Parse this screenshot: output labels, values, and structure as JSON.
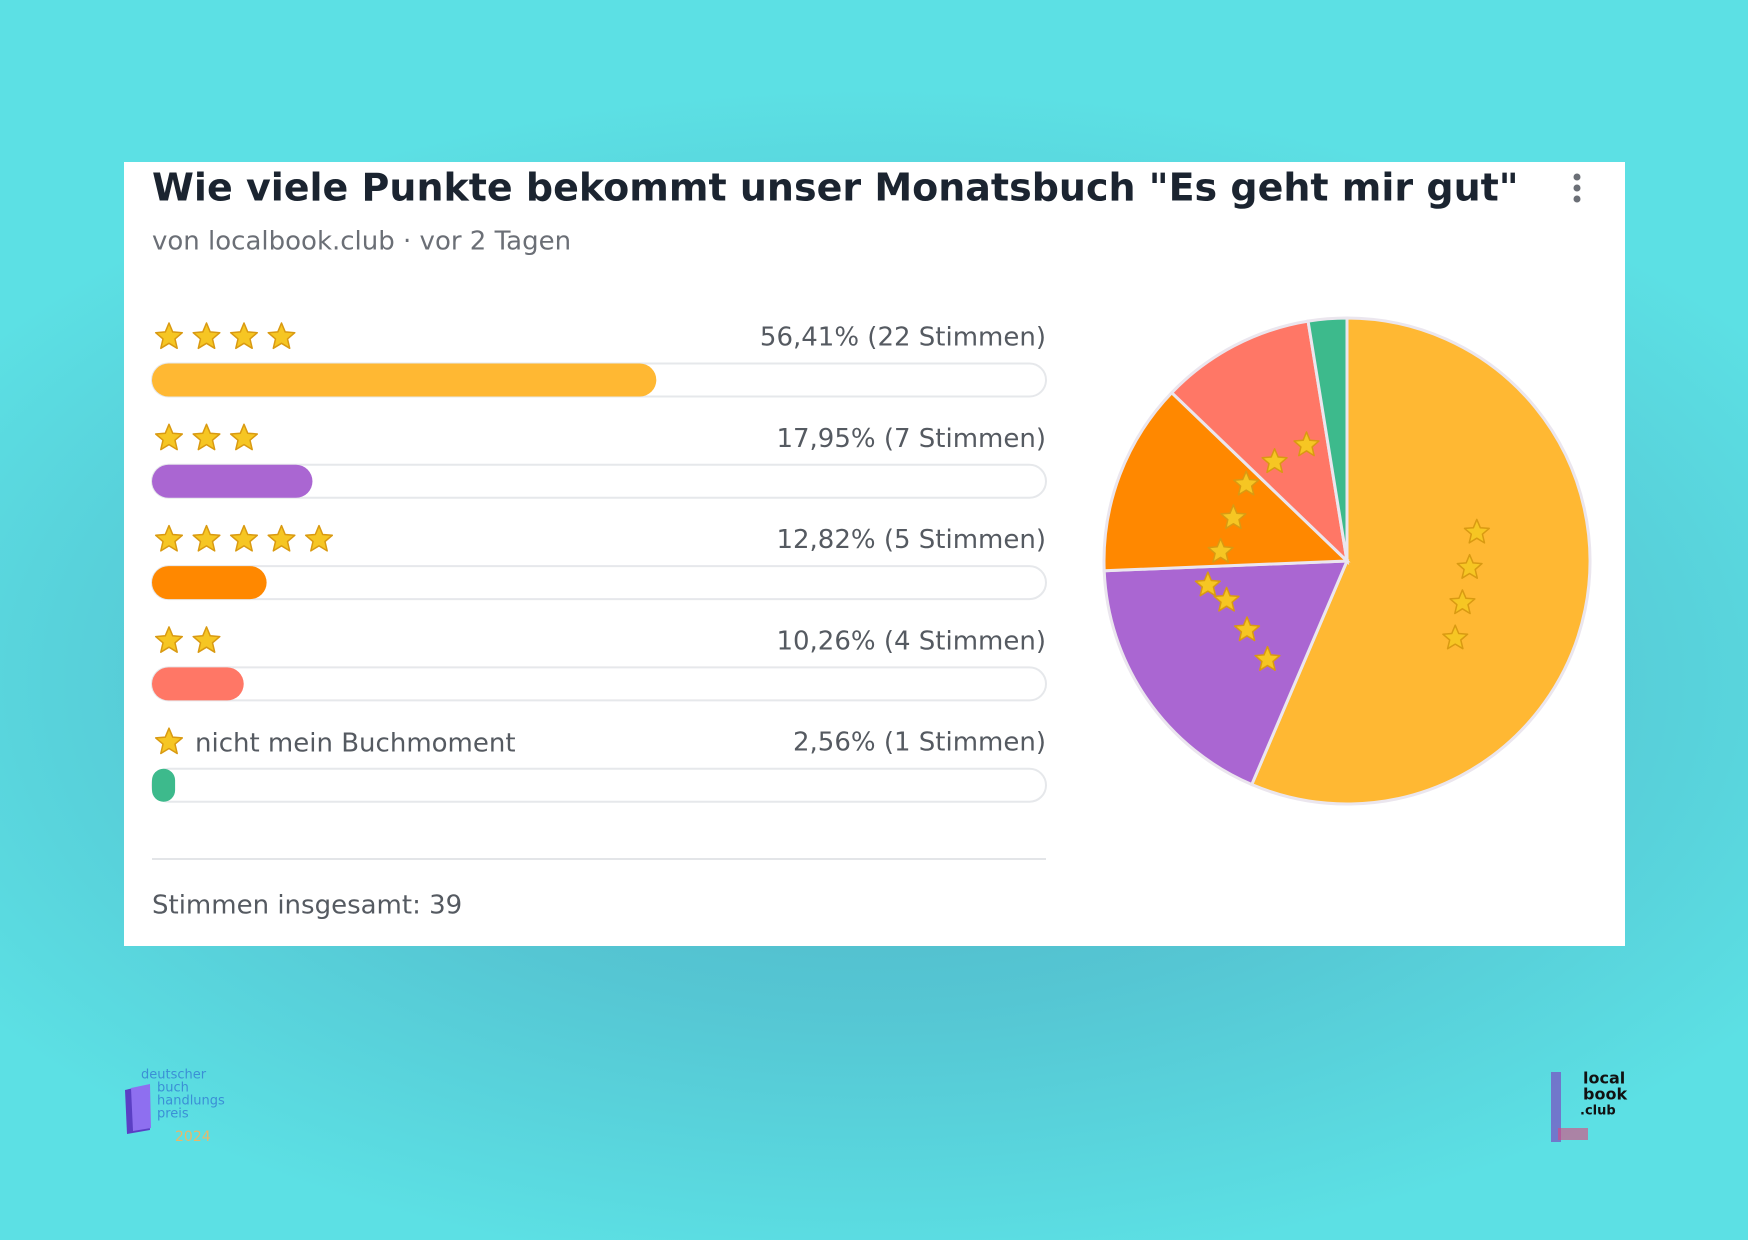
{
  "poll": {
    "title": "Wie viele Punkte bekommt unser Monatsbuch \"Es geht mir gut\"",
    "meta": "von localbook.club · vor 2 Tagen",
    "options": [
      {
        "stars": 4,
        "value": 56.41,
        "value_label": "56,41% (22 Stimmen)",
        "color": "#ffb833"
      },
      {
        "stars": 3,
        "value": 17.95,
        "value_label": "17,95% (7 Stimmen)",
        "color": "#aa66d2"
      },
      {
        "stars": 5,
        "value": 12.82,
        "value_label": "12,82% (5 Stimmen)",
        "color": "#ff8800"
      },
      {
        "stars": 2,
        "value": 10.26,
        "value_label": "10,26% (4 Stimmen)",
        "color": "#ff7766"
      },
      {
        "stars": 1,
        "label": "nicht mein Buchmoment",
        "value": 2.56,
        "value_label": "2,56% (1 Stimmen)",
        "color": "#3dba8c"
      }
    ],
    "total": "Stimmen insgesamt: 39"
  },
  "logos": {
    "left": [
      "deutscher",
      "buch",
      "handlungs",
      "preis",
      "2024"
    ],
    "right": [
      "local",
      "book",
      ".club"
    ]
  }
}
